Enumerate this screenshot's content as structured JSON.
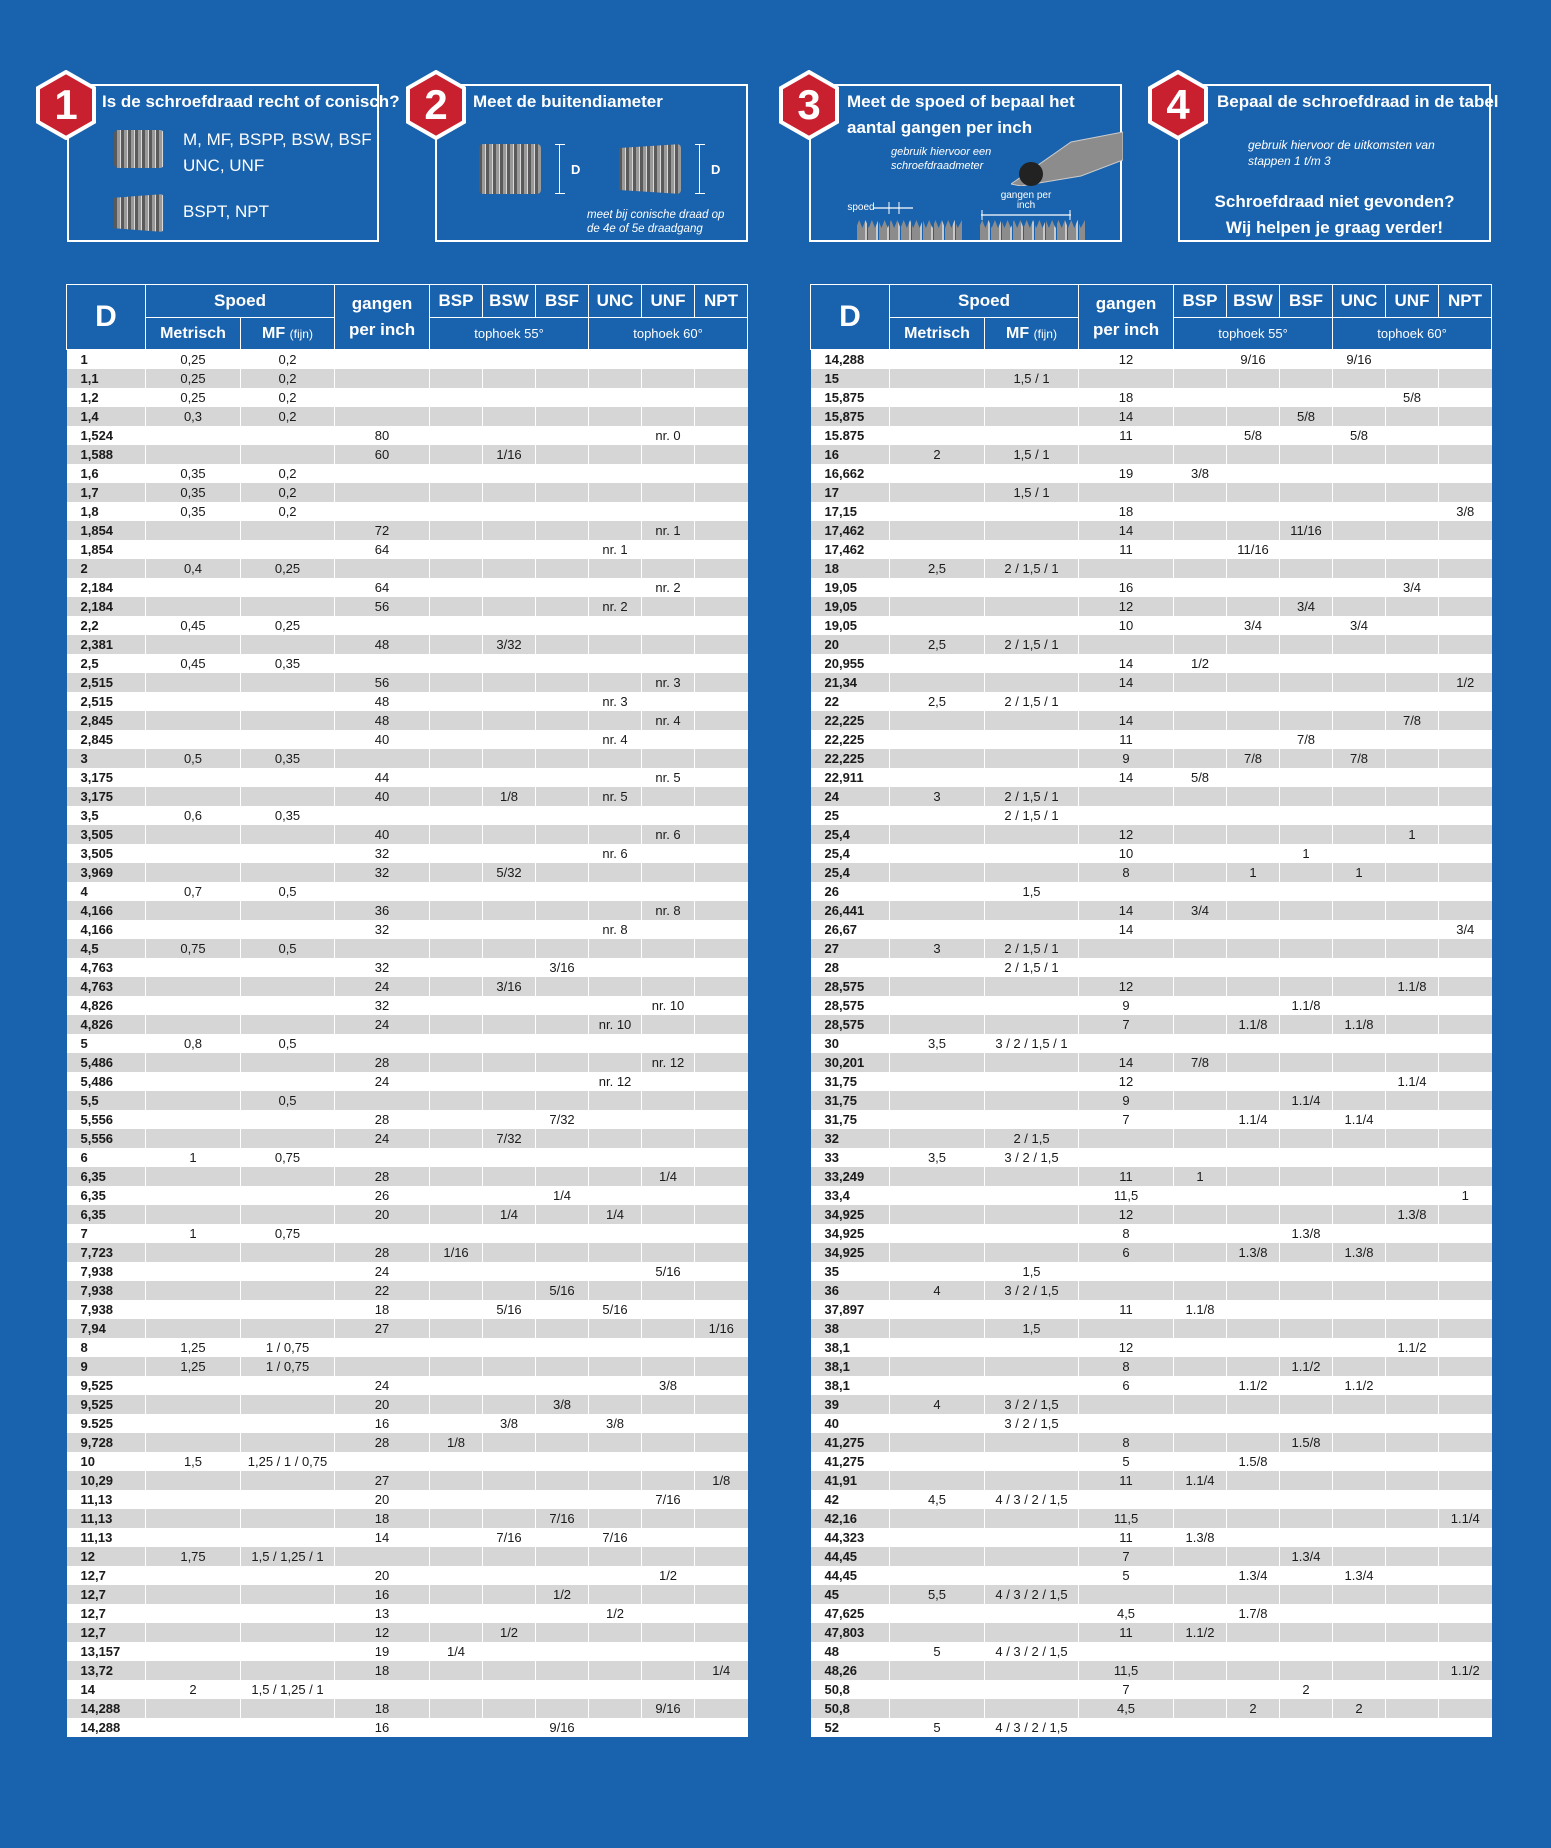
{
  "steps": [
    {
      "num": "1",
      "title": "Is de schroefdraad recht of conisch?",
      "line1": "M, MF, BSPP, BSW, BSF ,",
      "line2": "UNC, UNF",
      "line3": "BSPT, NPT"
    },
    {
      "num": "2",
      "title": "Meet de buitendiameter",
      "d_label": "D",
      "note1": "meet bij conische draad op",
      "note2": "de 4e of 5e draadgang"
    },
    {
      "num": "3",
      "title1": "Meet de spoed of bepaal het",
      "title2": "aantal gangen per inch",
      "note1": "gebruik hiervoor een",
      "note2": "schroefdraadmeter",
      "spoed": "spoed",
      "gangen1": "gangen per",
      "gangen2": "inch"
    },
    {
      "num": "4",
      "title": "Bepaal de schroefdraad in de tabel",
      "note1": "gebruik hiervoor de uitkomsten van",
      "note2": "stappen 1 t/m 3",
      "help1": "Schroefdraad niet gevonden?",
      "help2": "Wij helpen je graag verder!"
    }
  ],
  "headers": {
    "d": "D",
    "spoed": "Spoed",
    "metrisch": "Metrisch",
    "mf": "MF",
    "mf_small": "(fijn)",
    "gangen1": "gangen",
    "gangen2": "per inch",
    "bsp": "BSP",
    "bsw": "BSW",
    "bsf": "BSF",
    "unc": "UNC",
    "unf": "UNF",
    "npt": "NPT",
    "tophoek55": "tophoek 55°",
    "tophoek60": "tophoek 60°"
  },
  "table_left": [
    [
      "1",
      "0,25",
      "0,2",
      "",
      "",
      "",
      "",
      "",
      "",
      ""
    ],
    [
      "1,1",
      "0,25",
      "0,2",
      "",
      "",
      "",
      "",
      "",
      "",
      ""
    ],
    [
      "1,2",
      "0,25",
      "0,2",
      "",
      "",
      "",
      "",
      "",
      "",
      ""
    ],
    [
      "1,4",
      "0,3",
      "0,2",
      "",
      "",
      "",
      "",
      "",
      "",
      ""
    ],
    [
      "1,524",
      "",
      "",
      "80",
      "",
      "",
      "",
      "",
      "nr. 0",
      ""
    ],
    [
      "1,588",
      "",
      "",
      "60",
      "",
      "1/16",
      "",
      "",
      "",
      ""
    ],
    [
      "1,6",
      "0,35",
      "0,2",
      "",
      "",
      "",
      "",
      "",
      "",
      ""
    ],
    [
      "1,7",
      "0,35",
      "0,2",
      "",
      "",
      "",
      "",
      "",
      "",
      ""
    ],
    [
      "1,8",
      "0,35",
      "0,2",
      "",
      "",
      "",
      "",
      "",
      "",
      ""
    ],
    [
      "1,854",
      "",
      "",
      "72",
      "",
      "",
      "",
      "",
      "nr. 1",
      ""
    ],
    [
      "1,854",
      "",
      "",
      "64",
      "",
      "",
      "",
      "nr. 1",
      "",
      ""
    ],
    [
      "2",
      "0,4",
      "0,25",
      "",
      "",
      "",
      "",
      "",
      "",
      ""
    ],
    [
      "2,184",
      "",
      "",
      "64",
      "",
      "",
      "",
      "",
      "nr. 2",
      ""
    ],
    [
      "2,184",
      "",
      "",
      "56",
      "",
      "",
      "",
      "nr. 2",
      "",
      ""
    ],
    [
      "2,2",
      "0,45",
      "0,25",
      "",
      "",
      "",
      "",
      "",
      "",
      ""
    ],
    [
      "2,381",
      "",
      "",
      "48",
      "",
      "3/32",
      "",
      "",
      "",
      ""
    ],
    [
      "2,5",
      "0,45",
      "0,35",
      "",
      "",
      "",
      "",
      "",
      "",
      ""
    ],
    [
      "2,515",
      "",
      "",
      "56",
      "",
      "",
      "",
      "",
      "nr. 3",
      ""
    ],
    [
      "2,515",
      "",
      "",
      "48",
      "",
      "",
      "",
      "nr. 3",
      "",
      ""
    ],
    [
      "2,845",
      "",
      "",
      "48",
      "",
      "",
      "",
      "",
      "nr. 4",
      ""
    ],
    [
      "2,845",
      "",
      "",
      "40",
      "",
      "",
      "",
      "nr. 4",
      "",
      ""
    ],
    [
      "3",
      "0,5",
      "0,35",
      "",
      "",
      "",
      "",
      "",
      "",
      ""
    ],
    [
      "3,175",
      "",
      "",
      "44",
      "",
      "",
      "",
      "",
      "nr. 5",
      ""
    ],
    [
      "3,175",
      "",
      "",
      "40",
      "",
      "1/8",
      "",
      "nr. 5",
      "",
      ""
    ],
    [
      "3,5",
      "0,6",
      "0,35",
      "",
      "",
      "",
      "",
      "",
      "",
      ""
    ],
    [
      "3,505",
      "",
      "",
      "40",
      "",
      "",
      "",
      "",
      "nr. 6",
      ""
    ],
    [
      "3,505",
      "",
      "",
      "32",
      "",
      "",
      "",
      "nr. 6",
      "",
      ""
    ],
    [
      "3,969",
      "",
      "",
      "32",
      "",
      "5/32",
      "",
      "",
      "",
      ""
    ],
    [
      "4",
      "0,7",
      "0,5",
      "",
      "",
      "",
      "",
      "",
      "",
      ""
    ],
    [
      "4,166",
      "",
      "",
      "36",
      "",
      "",
      "",
      "",
      "nr. 8",
      ""
    ],
    [
      "4,166",
      "",
      "",
      "32",
      "",
      "",
      "",
      "nr. 8",
      "",
      ""
    ],
    [
      "4,5",
      "0,75",
      "0,5",
      "",
      "",
      "",
      "",
      "",
      "",
      ""
    ],
    [
      "4,763",
      "",
      "",
      "32",
      "",
      "",
      "3/16",
      "",
      "",
      ""
    ],
    [
      "4,763",
      "",
      "",
      "24",
      "",
      "3/16",
      "",
      "",
      "",
      ""
    ],
    [
      "4,826",
      "",
      "",
      "32",
      "",
      "",
      "",
      "",
      "nr. 10",
      ""
    ],
    [
      "4,826",
      "",
      "",
      "24",
      "",
      "",
      "",
      "nr. 10",
      "",
      ""
    ],
    [
      "5",
      "0,8",
      "0,5",
      "",
      "",
      "",
      "",
      "",
      "",
      ""
    ],
    [
      "5,486",
      "",
      "",
      "28",
      "",
      "",
      "",
      "",
      "nr. 12",
      ""
    ],
    [
      "5,486",
      "",
      "",
      "24",
      "",
      "",
      "",
      "nr. 12",
      "",
      ""
    ],
    [
      "5,5",
      "",
      "0,5",
      "",
      "",
      "",
      "",
      "",
      "",
      ""
    ],
    [
      "5,556",
      "",
      "",
      "28",
      "",
      "",
      "7/32",
      "",
      "",
      ""
    ],
    [
      "5,556",
      "",
      "",
      "24",
      "",
      "7/32",
      "",
      "",
      "",
      ""
    ],
    [
      "6",
      "1",
      "0,75",
      "",
      "",
      "",
      "",
      "",
      "",
      ""
    ],
    [
      "6,35",
      "",
      "",
      "28",
      "",
      "",
      "",
      "",
      "1/4",
      ""
    ],
    [
      "6,35",
      "",
      "",
      "26",
      "",
      "",
      "1/4",
      "",
      "",
      ""
    ],
    [
      "6,35",
      "",
      "",
      "20",
      "",
      "1/4",
      "",
      "1/4",
      "",
      ""
    ],
    [
      "7",
      "1",
      "0,75",
      "",
      "",
      "",
      "",
      "",
      "",
      ""
    ],
    [
      "7,723",
      "",
      "",
      "28",
      "1/16",
      "",
      "",
      "",
      "",
      ""
    ],
    [
      "7,938",
      "",
      "",
      "24",
      "",
      "",
      "",
      "",
      "5/16",
      ""
    ],
    [
      "7,938",
      "",
      "",
      "22",
      "",
      "",
      "5/16",
      "",
      "",
      ""
    ],
    [
      "7,938",
      "",
      "",
      "18",
      "",
      "5/16",
      "",
      "5/16",
      "",
      ""
    ],
    [
      "7,94",
      "",
      "",
      "27",
      "",
      "",
      "",
      "",
      "",
      "1/16"
    ],
    [
      "8",
      "1,25",
      "1 / 0,75",
      "",
      "",
      "",
      "",
      "",
      "",
      ""
    ],
    [
      "9",
      "1,25",
      "1 / 0,75",
      "",
      "",
      "",
      "",
      "",
      "",
      ""
    ],
    [
      "9,525",
      "",
      "",
      "24",
      "",
      "",
      "",
      "",
      "3/8",
      ""
    ],
    [
      "9,525",
      "",
      "",
      "20",
      "",
      "",
      "3/8",
      "",
      "",
      ""
    ],
    [
      "9.525",
      "",
      "",
      "16",
      "",
      "3/8",
      "",
      "3/8",
      "",
      ""
    ],
    [
      "9,728",
      "",
      "",
      "28",
      "1/8",
      "",
      "",
      "",
      "",
      ""
    ],
    [
      "10",
      "1,5",
      "1,25 / 1 / 0,75",
      "",
      "",
      "",
      "",
      "",
      "",
      ""
    ],
    [
      "10,29",
      "",
      "",
      "27",
      "",
      "",
      "",
      "",
      "",
      "1/8"
    ],
    [
      "11,13",
      "",
      "",
      "20",
      "",
      "",
      "",
      "",
      "7/16",
      ""
    ],
    [
      "11,13",
      "",
      "",
      "18",
      "",
      "",
      "7/16",
      "",
      "",
      ""
    ],
    [
      "11,13",
      "",
      "",
      "14",
      "",
      "7/16",
      "",
      "7/16",
      "",
      ""
    ],
    [
      "12",
      "1,75",
      "1,5 / 1,25 / 1",
      "",
      "",
      "",
      "",
      "",
      "",
      ""
    ],
    [
      "12,7",
      "",
      "",
      "20",
      "",
      "",
      "",
      "",
      "1/2",
      ""
    ],
    [
      "12,7",
      "",
      "",
      "16",
      "",
      "",
      "1/2",
      "",
      "",
      ""
    ],
    [
      "12,7",
      "",
      "",
      "13",
      "",
      "",
      "",
      "1/2",
      "",
      ""
    ],
    [
      "12,7",
      "",
      "",
      "12",
      "",
      "1/2",
      "",
      "",
      "",
      ""
    ],
    [
      "13,157",
      "",
      "",
      "19",
      "1/4",
      "",
      "",
      "",
      "",
      ""
    ],
    [
      "13,72",
      "",
      "",
      "18",
      "",
      "",
      "",
      "",
      "",
      "1/4"
    ],
    [
      "14",
      "2",
      "1,5 / 1,25 / 1",
      "",
      "",
      "",
      "",
      "",
      "",
      ""
    ],
    [
      "14,288",
      "",
      "",
      "18",
      "",
      "",
      "",
      "",
      "9/16",
      ""
    ],
    [
      "14,288",
      "",
      "",
      "16",
      "",
      "",
      "9/16",
      "",
      "",
      ""
    ]
  ],
  "table_right": [
    [
      "14,288",
      "",
      "",
      "12",
      "",
      "9/16",
      "",
      "9/16",
      "",
      ""
    ],
    [
      "15",
      "",
      "1,5 / 1",
      "",
      "",
      "",
      "",
      "",
      "",
      ""
    ],
    [
      "15,875",
      "",
      "",
      "18",
      "",
      "",
      "",
      "",
      "5/8",
      ""
    ],
    [
      "15,875",
      "",
      "",
      "14",
      "",
      "",
      "5/8",
      "",
      "",
      ""
    ],
    [
      "15.875",
      "",
      "",
      "11",
      "",
      "5/8",
      "",
      "5/8",
      "",
      ""
    ],
    [
      "16",
      "2",
      "1,5 / 1",
      "",
      "",
      "",
      "",
      "",
      "",
      ""
    ],
    [
      "16,662",
      "",
      "",
      "19",
      "3/8",
      "",
      "",
      "",
      "",
      ""
    ],
    [
      "17",
      "",
      "1,5 / 1",
      "",
      "",
      "",
      "",
      "",
      "",
      ""
    ],
    [
      "17,15",
      "",
      "",
      "18",
      "",
      "",
      "",
      "",
      "",
      "3/8"
    ],
    [
      "17,462",
      "",
      "",
      "14",
      "",
      "",
      "11/16",
      "",
      "",
      ""
    ],
    [
      "17,462",
      "",
      "",
      "11",
      "",
      "11/16",
      "",
      "",
      "",
      ""
    ],
    [
      "18",
      "2,5",
      "2 / 1,5 / 1",
      "",
      "",
      "",
      "",
      "",
      "",
      ""
    ],
    [
      "19,05",
      "",
      "",
      "16",
      "",
      "",
      "",
      "",
      "3/4",
      ""
    ],
    [
      "19,05",
      "",
      "",
      "12",
      "",
      "",
      "3/4",
      "",
      "",
      ""
    ],
    [
      "19,05",
      "",
      "",
      "10",
      "",
      "3/4",
      "",
      "3/4",
      "",
      ""
    ],
    [
      "20",
      "2,5",
      "2 / 1,5 / 1",
      "",
      "",
      "",
      "",
      "",
      "",
      ""
    ],
    [
      "20,955",
      "",
      "",
      "14",
      "1/2",
      "",
      "",
      "",
      "",
      ""
    ],
    [
      "21,34",
      "",
      "",
      "14",
      "",
      "",
      "",
      "",
      "",
      "1/2"
    ],
    [
      "22",
      "2,5",
      "2 / 1,5 / 1",
      "",
      "",
      "",
      "",
      "",
      "",
      ""
    ],
    [
      "22,225",
      "",
      "",
      "14",
      "",
      "",
      "",
      "",
      "7/8",
      ""
    ],
    [
      "22,225",
      "",
      "",
      "11",
      "",
      "",
      "7/8",
      "",
      "",
      ""
    ],
    [
      "22,225",
      "",
      "",
      "9",
      "",
      "7/8",
      "",
      "7/8",
      "",
      ""
    ],
    [
      "22,911",
      "",
      "",
      "14",
      "5/8",
      "",
      "",
      "",
      "",
      ""
    ],
    [
      "24",
      "3",
      "2 / 1,5 / 1",
      "",
      "",
      "",
      "",
      "",
      "",
      ""
    ],
    [
      "25",
      "",
      "2 / 1,5 / 1",
      "",
      "",
      "",
      "",
      "",
      "",
      ""
    ],
    [
      "25,4",
      "",
      "",
      "12",
      "",
      "",
      "",
      "",
      "1",
      ""
    ],
    [
      "25,4",
      "",
      "",
      "10",
      "",
      "",
      "1",
      "",
      "",
      ""
    ],
    [
      "25,4",
      "",
      "",
      "8",
      "",
      "1",
      "",
      "1",
      "",
      ""
    ],
    [
      "26",
      "",
      "1,5",
      "",
      "",
      "",
      "",
      "",
      "",
      ""
    ],
    [
      "26,441",
      "",
      "",
      "14",
      "3/4",
      "",
      "",
      "",
      "",
      ""
    ],
    [
      "26,67",
      "",
      "",
      "14",
      "",
      "",
      "",
      "",
      "",
      "3/4"
    ],
    [
      "27",
      "3",
      "2 / 1,5 / 1",
      "",
      "",
      "",
      "",
      "",
      "",
      ""
    ],
    [
      "28",
      "",
      "2 / 1,5 / 1",
      "",
      "",
      "",
      "",
      "",
      "",
      ""
    ],
    [
      "28,575",
      "",
      "",
      "12",
      "",
      "",
      "",
      "",
      "1.1/8",
      ""
    ],
    [
      "28,575",
      "",
      "",
      "9",
      "",
      "",
      "1.1/8",
      "",
      "",
      ""
    ],
    [
      "28,575",
      "",
      "",
      "7",
      "",
      "1.1/8",
      "",
      "1.1/8",
      "",
      ""
    ],
    [
      "30",
      "3,5",
      "3 / 2 / 1,5 / 1",
      "",
      "",
      "",
      "",
      "",
      "",
      ""
    ],
    [
      "30,201",
      "",
      "",
      "14",
      "7/8",
      "",
      "",
      "",
      "",
      ""
    ],
    [
      "31,75",
      "",
      "",
      "12",
      "",
      "",
      "",
      "",
      "1.1/4",
      ""
    ],
    [
      "31,75",
      "",
      "",
      "9",
      "",
      "",
      "1.1/4",
      "",
      "",
      ""
    ],
    [
      "31,75",
      "",
      "",
      "7",
      "",
      "1.1/4",
      "",
      "1.1/4",
      "",
      ""
    ],
    [
      "32",
      "",
      "2 / 1,5",
      "",
      "",
      "",
      "",
      "",
      "",
      ""
    ],
    [
      "33",
      "3,5",
      "3 / 2 / 1,5",
      "",
      "",
      "",
      "",
      "",
      "",
      ""
    ],
    [
      "33,249",
      "",
      "",
      "11",
      "1",
      "",
      "",
      "",
      "",
      ""
    ],
    [
      "33,4",
      "",
      "",
      "11,5",
      "",
      "",
      "",
      "",
      "",
      "1"
    ],
    [
      "34,925",
      "",
      "",
      "12",
      "",
      "",
      "",
      "",
      "1.3/8",
      ""
    ],
    [
      "34,925",
      "",
      "",
      "8",
      "",
      "",
      "1.3/8",
      "",
      "",
      ""
    ],
    [
      "34,925",
      "",
      "",
      "6",
      "",
      "1.3/8",
      "",
      "1.3/8",
      "",
      ""
    ],
    [
      "35",
      "",
      "1,5",
      "",
      "",
      "",
      "",
      "",
      "",
      ""
    ],
    [
      "36",
      "4",
      "3 / 2 / 1,5",
      "",
      "",
      "",
      "",
      "",
      "",
      ""
    ],
    [
      "37,897",
      "",
      "",
      "11",
      "1.1/8",
      "",
      "",
      "",
      "",
      ""
    ],
    [
      "38",
      "",
      "1,5",
      "",
      "",
      "",
      "",
      "",
      "",
      ""
    ],
    [
      "38,1",
      "",
      "",
      "12",
      "",
      "",
      "",
      "",
      "1.1/2",
      ""
    ],
    [
      "38,1",
      "",
      "",
      "8",
      "",
      "",
      "1.1/2",
      "",
      "",
      ""
    ],
    [
      "38,1",
      "",
      "",
      "6",
      "",
      "1.1/2",
      "",
      "1.1/2",
      "",
      ""
    ],
    [
      "39",
      "4",
      "3 / 2 / 1,5",
      "",
      "",
      "",
      "",
      "",
      "",
      ""
    ],
    [
      "40",
      "",
      "3 / 2 / 1,5",
      "",
      "",
      "",
      "",
      "",
      "",
      ""
    ],
    [
      "41,275",
      "",
      "",
      "8",
      "",
      "",
      "1.5/8",
      "",
      "",
      ""
    ],
    [
      "41,275",
      "",
      "",
      "5",
      "",
      "1.5/8",
      "",
      "",
      "",
      ""
    ],
    [
      "41,91",
      "",
      "",
      "11",
      "1.1/4",
      "",
      "",
      "",
      "",
      ""
    ],
    [
      "42",
      "4,5",
      "4 / 3 / 2 / 1,5",
      "",
      "",
      "",
      "",
      "",
      "",
      ""
    ],
    [
      "42,16",
      "",
      "",
      "11,5",
      "",
      "",
      "",
      "",
      "",
      "1.1/4"
    ],
    [
      "44,323",
      "",
      "",
      "11",
      "1.3/8",
      "",
      "",
      "",
      "",
      ""
    ],
    [
      "44,45",
      "",
      "",
      "7",
      "",
      "",
      "1.3/4",
      "",
      "",
      ""
    ],
    [
      "44,45",
      "",
      "",
      "5",
      "",
      "1.3/4",
      "",
      "1.3/4",
      "",
      ""
    ],
    [
      "45",
      "5,5",
      "4 / 3 / 2 / 1,5",
      "",
      "",
      "",
      "",
      "",
      "",
      ""
    ],
    [
      "47,625",
      "",
      "",
      "4,5",
      "",
      "1.7/8",
      "",
      "",
      "",
      ""
    ],
    [
      "47,803",
      "",
      "",
      "11",
      "1.1/2",
      "",
      "",
      "",
      "",
      ""
    ],
    [
      "48",
      "5",
      "4 / 3 / 2 / 1,5",
      "",
      "",
      "",
      "",
      "",
      "",
      ""
    ],
    [
      "48,26",
      "",
      "",
      "11,5",
      "",
      "",
      "",
      "",
      "",
      "1.1/2"
    ],
    [
      "50,8",
      "",
      "",
      "7",
      "",
      "",
      "2",
      "",
      "",
      ""
    ],
    [
      "50,8",
      "",
      "",
      "4,5",
      "",
      "2",
      "",
      "2",
      "",
      ""
    ],
    [
      "52",
      "5",
      "4 / 3 / 2 / 1,5",
      "",
      "",
      "",
      "",
      "",
      "",
      ""
    ]
  ]
}
